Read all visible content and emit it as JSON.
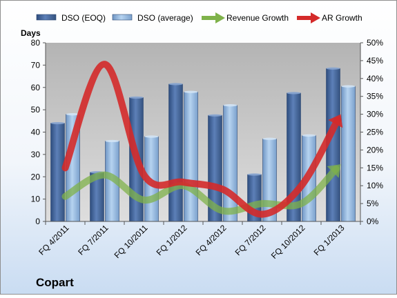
{
  "chart_data": {
    "type": "bar",
    "title": "Copart",
    "categories": [
      "FQ 4/2011",
      "FQ 7/2011",
      "FQ 10/2011",
      "FQ 1/2012",
      "FQ 4/2012",
      "FQ 7/2012",
      "FQ 10/2012",
      "FQ 1/2013"
    ],
    "ylabel": "Days",
    "ylim": [
      0,
      80
    ],
    "yticks": [
      "0",
      "10",
      "20",
      "30",
      "40",
      "50",
      "60",
      "70",
      "80"
    ],
    "y2lim": [
      0,
      0.5
    ],
    "y2ticks": [
      "0%",
      "5%",
      "10%",
      "15%",
      "20%",
      "25%",
      "30%",
      "35%",
      "40%",
      "45%",
      "50%"
    ],
    "legend_position": "top",
    "series": [
      {
        "name": "DSO (EOQ)",
        "kind": "bar",
        "axis": "left",
        "color": "#4f6fa3",
        "values": [
          44,
          22,
          55.5,
          61.5,
          47.5,
          21,
          57.5,
          68.5
        ]
      },
      {
        "name": "DSO (average)",
        "kind": "bar",
        "axis": "left",
        "color": "#9cc1e6",
        "values": [
          48,
          36,
          38,
          58,
          52,
          37,
          38.5,
          60.5
        ]
      },
      {
        "name": "Revenue Growth",
        "kind": "line",
        "axis": "right",
        "color": "#7fb24a",
        "values": [
          0.07,
          0.13,
          0.06,
          0.1,
          0.03,
          0.05,
          0.05,
          0.16
        ]
      },
      {
        "name": "AR Growth",
        "kind": "line",
        "axis": "right",
        "color": "#d42a2a",
        "values": [
          0.15,
          0.44,
          0.13,
          0.11,
          0.09,
          0.02,
          0.1,
          0.3
        ]
      }
    ],
    "grid": false,
    "colors": {
      "plot_bg": "#c8c8c8",
      "page_bg_top": "#ffffff",
      "page_bg_bottom": "#cfe0f3"
    }
  }
}
